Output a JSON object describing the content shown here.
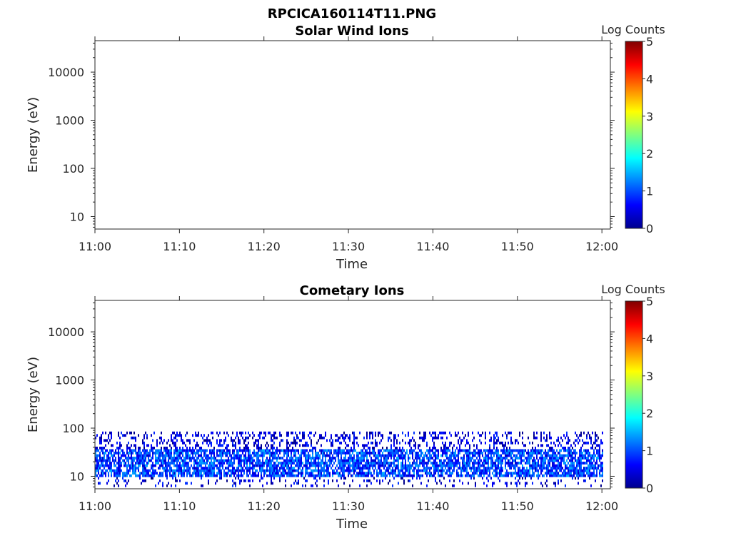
{
  "figure_title": "RPCICA160114T11.PNG",
  "chart_data": [
    {
      "type": "heatmap",
      "title": "Solar Wind Ions",
      "xlabel": "Time",
      "ylabel": "Energy (eV)",
      "x_ticks": [
        "11:00",
        "11:10",
        "11:20",
        "11:30",
        "11:40",
        "11:50",
        "12:00"
      ],
      "y_ticks": [
        "10",
        "100",
        "1000",
        "10000"
      ],
      "y_scale": "log",
      "xlim": [
        "11:00",
        "12:01"
      ],
      "ylim": [
        5.5,
        45000
      ],
      "colorbar": {
        "label": "Log Counts",
        "ticks": [
          "0",
          "1",
          "2",
          "3",
          "4",
          "5"
        ],
        "range": [
          0,
          5
        ],
        "colormap": "jet"
      },
      "data": {
        "description": "no counts recorded",
        "x_range": [],
        "energy_range_eV": [],
        "log_counts_range": []
      }
    },
    {
      "type": "heatmap",
      "title": "Cometary Ions",
      "xlabel": "Time",
      "ylabel": "Energy (eV)",
      "x_ticks": [
        "11:00",
        "11:10",
        "11:20",
        "11:30",
        "11:40",
        "11:50",
        "12:00"
      ],
      "y_ticks": [
        "10",
        "100",
        "1000",
        "10000"
      ],
      "y_scale": "log",
      "xlim": [
        "11:00",
        "12:01"
      ],
      "ylim": [
        5.5,
        45000
      ],
      "colorbar": {
        "label": "Log Counts",
        "ticks": [
          "0",
          "1",
          "2",
          "3",
          "4",
          "5"
        ],
        "range": [
          0,
          5
        ],
        "colormap": "jet"
      },
      "data": {
        "x_range": [
          "11:00",
          "12:00"
        ],
        "energy_range_eV": [
          6,
          85
        ],
        "core_energy_range_eV": [
          10,
          35
        ],
        "log_counts_range": [
          0,
          1.5
        ],
        "peak_log_counts": 1.5
      }
    }
  ]
}
